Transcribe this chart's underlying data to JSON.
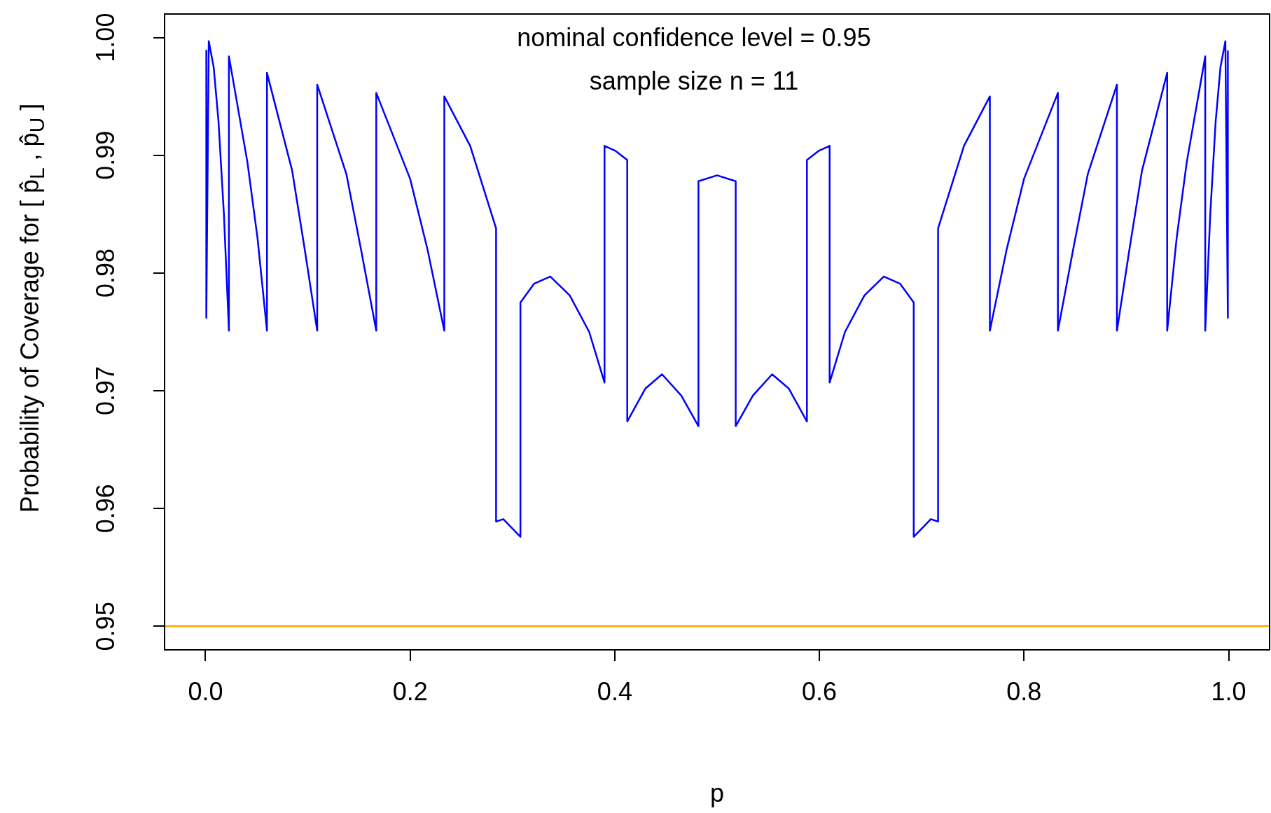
{
  "chart_data": {
    "type": "line",
    "xlabel": "p",
    "ylabel": "Probability of Coverage for [ p̂$_{L}$ , p̂$_{U}$ ]",
    "annotations": [
      "nominal confidence level = 0.95",
      "sample size n = 11"
    ],
    "xlim": [
      -0.04,
      1.04
    ],
    "ylim": [
      0.948,
      1.002
    ],
    "xticks": [
      {
        "value": 0,
        "label": "0.0"
      },
      0.2,
      0.4,
      0.6,
      0.8,
      {
        "value": 1,
        "label": "1.0"
      }
    ],
    "yticks": [
      0.95,
      0.96,
      0.97,
      0.98,
      0.99,
      {
        "value": 1,
        "label": "1.00"
      }
    ],
    "grid": false,
    "legend": false,
    "marker": "none",
    "line_style": "solid",
    "ref_lines": [
      {
        "axis": "y",
        "value": 0.95,
        "color": "#ffa500"
      }
    ],
    "series": [
      {
        "color": "#0000ff",
        "x": [
          0.0008,
          0.0008,
          0.0032,
          0.008,
          0.0127,
          0.018,
          0.0229,
          0.0229,
          0.041,
          0.0508,
          0.0601,
          0.0601,
          0.0847,
          0.097,
          0.1092,
          0.1092,
          0.1377,
          0.152,
          0.1669,
          0.1669,
          0.2,
          0.217,
          0.2334,
          0.2334,
          0.2587,
          0.284,
          0.284,
          0.2911,
          0.3078,
          0.3078,
          0.3212,
          0.337,
          0.356,
          0.375,
          0.39,
          0.39,
          0.4003,
          0.4122,
          0.4122,
          0.43,
          0.4462,
          0.465,
          0.4818,
          0.4818,
          0.5,
          0.5182,
          0.5182,
          0.535,
          0.5538,
          0.57,
          0.5878,
          0.5878,
          0.5997,
          0.61,
          0.61,
          0.625,
          0.644,
          0.663,
          0.6788,
          0.6922,
          0.6922,
          0.7089,
          0.716,
          0.716,
          0.7413,
          0.7666,
          0.7666,
          0.783,
          0.8,
          0.8331,
          0.8331,
          0.848,
          0.8623,
          0.8908,
          0.8908,
          0.903,
          0.9153,
          0.9399,
          0.9399,
          0.9492,
          0.959,
          0.9771,
          0.9771,
          0.982,
          0.9873,
          0.992,
          0.9968,
          0.9992,
          0.9992
        ],
        "values": [
          0.9989,
          0.9762,
          0.9997,
          0.9975,
          0.9929,
          0.985,
          0.9751,
          0.9984,
          0.9894,
          0.983,
          0.9751,
          0.997,
          0.9887,
          0.982,
          0.9751,
          0.996,
          0.9884,
          0.982,
          0.9751,
          0.9953,
          0.988,
          0.982,
          0.9751,
          0.995,
          0.9908,
          0.9838,
          0.9589,
          0.9591,
          0.9576,
          0.9775,
          0.9791,
          0.9797,
          0.9781,
          0.975,
          0.9707,
          0.9908,
          0.9904,
          0.9896,
          0.9674,
          0.9702,
          0.9714,
          0.9696,
          0.967,
          0.9878,
          0.9883,
          0.9878,
          0.967,
          0.9696,
          0.9714,
          0.9702,
          0.9674,
          0.9896,
          0.9904,
          0.9908,
          0.9707,
          0.975,
          0.9781,
          0.9797,
          0.9791,
          0.9775,
          0.9576,
          0.9591,
          0.9589,
          0.9838,
          0.9908,
          0.995,
          0.9751,
          0.982,
          0.988,
          0.9953,
          0.9751,
          0.982,
          0.9884,
          0.996,
          0.9751,
          0.982,
          0.9887,
          0.997,
          0.9751,
          0.983,
          0.9894,
          0.9984,
          0.9751,
          0.985,
          0.9929,
          0.9975,
          0.9997,
          0.9762,
          0.9989
        ]
      }
    ]
  }
}
